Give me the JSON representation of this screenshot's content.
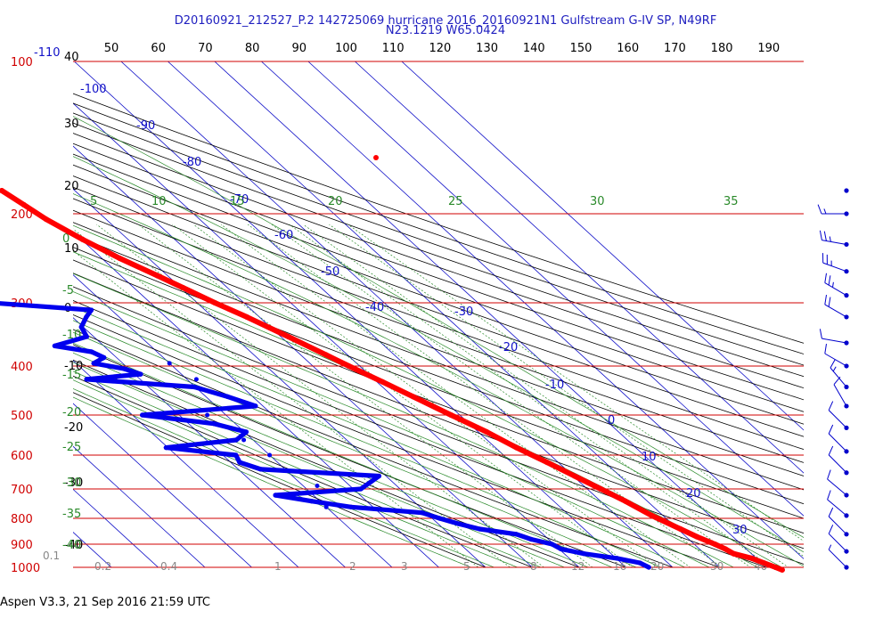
{
  "header": {
    "line1": "D20160921_212527_P.2 142725069 hurricane 2016_20160921N1 Gulfstream G-IV SP, N49RF",
    "line2": "N23.1219 W65.0424"
  },
  "footer": "Aspen V3.3, 21 Sep 2016  21:59 UTC",
  "colors": {
    "isobar": "#d00000",
    "pressure_label": "#d00000",
    "isotherm": "#1010c8",
    "dry_adiabat": "#000000",
    "mixing_ratio": "#2a8a2a",
    "temperature": "#ff0000",
    "dewpoint": "#0000ee",
    "wind": "#0000cc",
    "top_axis": "#000000"
  },
  "chart_data": {
    "type": "scatter",
    "diagram": "skew-T log-P",
    "title": "D20160921_212527_P.2 142725069 hurricane 2016_20160921N1 Gulfstream G-IV SP, N49RF",
    "subtitle": "N23.1219 W65.0424",
    "pressure_axis": {
      "ticks": [
        100,
        200,
        300,
        400,
        500,
        600,
        700,
        800,
        900,
        1000
      ],
      "ylim": [
        100,
        1000
      ],
      "scale": "log"
    },
    "top_axis_ticks": [
      50,
      60,
      70,
      80,
      90,
      100,
      110,
      120,
      130,
      140,
      150,
      160,
      170,
      180,
      190
    ],
    "left_secondary_labels": [
      "-110",
      "40",
      "30",
      "20",
      "10",
      "0",
      "-10",
      "-20",
      "-30",
      "-40"
    ],
    "isotherm_labels": [
      "-100",
      "-90",
      "-80",
      "-70",
      "-60",
      "-50",
      "-40",
      "-30",
      "-20",
      "-10",
      "0",
      "10",
      "20",
      "30"
    ],
    "theta_e_labels": [
      "5",
      "10",
      "15",
      "20",
      "25",
      "30",
      "35"
    ],
    "mixing_ratio_labels_left": [
      "0",
      "-5",
      "-10",
      "-15",
      "-20",
      "-25",
      "-30",
      "-35",
      "-40"
    ],
    "mixing_ratio_labels_bottom": [
      "0.1",
      "0.2",
      "0.4",
      "1",
      "2",
      "3",
      "5",
      "8",
      "12",
      "16",
      "20",
      "30",
      "40"
    ],
    "series": [
      {
        "name": "Temperature",
        "pressure": [
          180,
          192,
          205,
          225,
          245,
          265,
          280,
          300,
          320,
          350,
          380,
          400,
          430,
          460,
          500,
          540,
          580,
          620,
          660,
          700,
          740,
          790,
          840,
          870,
          900,
          920,
          940,
          960,
          980,
          1000,
          1012
        ],
        "temperature": [
          -55.6,
          -54.2,
          -52.8,
          -49.7,
          -46.2,
          -42.2,
          -39.5,
          -36.2,
          -32.7,
          -28.4,
          -24.6,
          -22.3,
          -18.8,
          -15.7,
          -11.9,
          -8.2,
          -5.5,
          -2.4,
          0.3,
          2.9,
          5.3,
          7.6,
          10.6,
          12.3,
          14.4,
          15.5,
          16.2,
          19.0,
          20.5,
          22.0,
          22.8
        ]
      },
      {
        "name": "Dewpoint",
        "pressure": [
          205,
          215,
          230,
          250,
          270,
          290,
          300,
          310,
          320,
          335,
          350,
          365,
          375,
          385,
          395,
          405,
          415,
          425,
          440,
          460,
          480,
          500,
          520,
          540,
          560,
          580,
          600,
          620,
          640,
          660,
          680,
          700,
          720,
          740,
          760,
          780,
          800,
          820,
          840,
          860,
          880,
          900,
          920,
          940,
          960,
          980,
          1000
        ],
        "temperature": [
          -78.4,
          -78.5,
          -78.0,
          -81.3,
          -83.0,
          -84.3,
          -84.0,
          -64.3,
          -67.0,
          -70.4,
          -71.5,
          -80.5,
          -74.0,
          -72.7,
          -76.2,
          -71.0,
          -68.7,
          -81.5,
          -60.2,
          -55.4,
          -51.6,
          -77.9,
          -64.6,
          -59.6,
          -63.6,
          -80.4,
          -67.2,
          -68.1,
          -65.2,
          -41.5,
          -45.0,
          -48.4,
          -68.1,
          -61.8,
          -54.7,
          -40.9,
          -38.4,
          -35.7,
          -32.3,
          -25.7,
          -23.7,
          -20.4,
          -19.6,
          -15.8,
          -9.8,
          -6.0,
          -5.1
        ]
      }
    ],
    "secondary_series": [
      {
        "name": "Dewpoint (scattered)",
        "pressure": [
          395,
          425,
          500,
          560,
          600,
          690,
          760
        ],
        "temperature": [
          -60.0,
          -58.0,
          -64.0,
          -62.0,
          -60.0,
          -57.0,
          -60.0
        ]
      }
    ],
    "wind_barbs": [
      {
        "pressure": 180,
        "speed": 0,
        "direction": 0
      },
      {
        "pressure": 200,
        "speed": 15,
        "direction": 270
      },
      {
        "pressure": 230,
        "speed": 25,
        "direction": 280
      },
      {
        "pressure": 260,
        "speed": 25,
        "direction": 290
      },
      {
        "pressure": 290,
        "speed": 25,
        "direction": 300
      },
      {
        "pressure": 320,
        "speed": 20,
        "direction": 300
      },
      {
        "pressure": 360,
        "speed": 10,
        "direction": 280
      },
      {
        "pressure": 400,
        "speed": 10,
        "direction": 300
      },
      {
        "pressure": 440,
        "speed": 15,
        "direction": 320
      },
      {
        "pressure": 480,
        "speed": 10,
        "direction": 330
      },
      {
        "pressure": 530,
        "speed": 10,
        "direction": 315
      },
      {
        "pressure": 590,
        "speed": 10,
        "direction": 315
      },
      {
        "pressure": 650,
        "speed": 10,
        "direction": 315
      },
      {
        "pressure": 720,
        "speed": 10,
        "direction": 310
      },
      {
        "pressure": 790,
        "speed": 10,
        "direction": 310
      },
      {
        "pressure": 860,
        "speed": 10,
        "direction": 315
      },
      {
        "pressure": 930,
        "speed": 10,
        "direction": 315
      },
      {
        "pressure": 1000,
        "speed": 5,
        "direction": 315
      }
    ],
    "grid": true
  }
}
